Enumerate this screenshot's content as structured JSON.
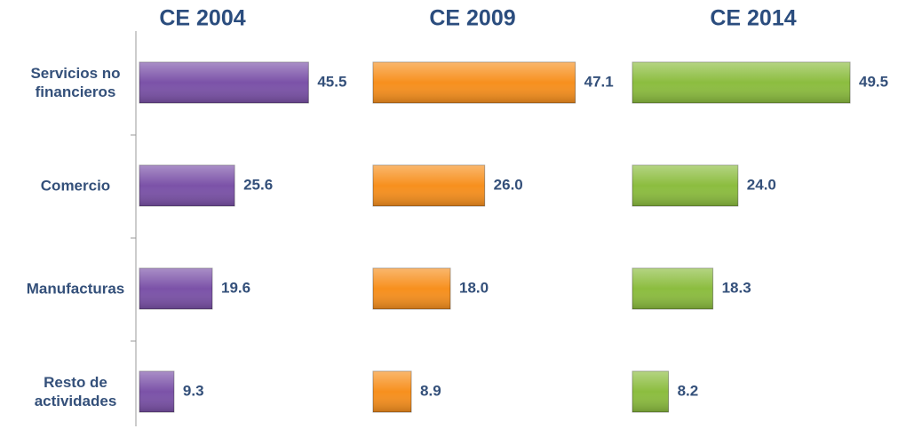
{
  "chart_data": {
    "type": "bar",
    "orientation": "horizontal",
    "categories": [
      "Servicios no financieros",
      "Comercio",
      "Manufacturas",
      "Resto de actividades"
    ],
    "series": [
      {
        "name": "CE 2004",
        "color": "#7b52a8",
        "values": [
          45.5,
          25.6,
          19.6,
          9.3
        ],
        "value_labels": [
          "45.5",
          "25.6",
          "19.6",
          "9.3"
        ]
      },
      {
        "name": "CE 2009",
        "color": "#f7901e",
        "values": [
          47.1,
          26,
          18,
          8.9
        ],
        "value_labels": [
          "47.1",
          "26.0",
          "18.0",
          "8.9"
        ]
      },
      {
        "name": "CE 2014",
        "color": "#8cbd3f",
        "values": [
          49.5,
          24,
          18.3,
          8.2
        ],
        "value_labels": [
          "49.5",
          "24.0",
          "18.3",
          "8.2"
        ]
      }
    ],
    "xlim": [
      0,
      60
    ]
  }
}
